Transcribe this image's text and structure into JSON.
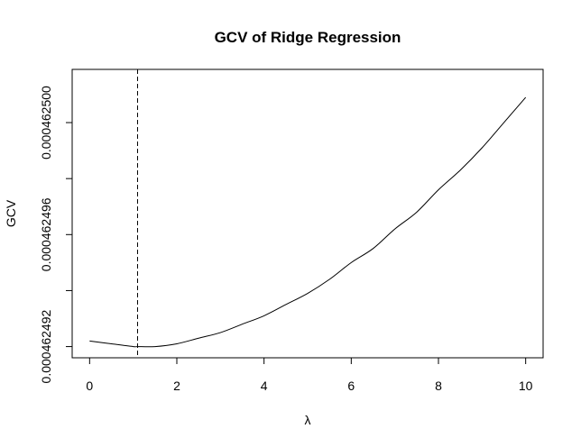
{
  "chart_data": {
    "type": "line",
    "title": "GCV of Ridge Regression",
    "xlabel": "λ",
    "ylabel": "GCV",
    "xlim": [
      -0.4,
      10.4
    ],
    "ylim": [
      0.0004624916,
      0.0004625019
    ],
    "xticks": [
      0,
      2,
      4,
      6,
      8,
      10
    ],
    "xtick_labels": [
      "0",
      "2",
      "4",
      "6",
      "8",
      "10"
    ],
    "yticks": [
      0.000462492,
      0.000462494,
      0.000462496,
      0.000462498,
      0.0004625
    ],
    "ytick_labels": [
      "0.000462492",
      "",
      "0.000462496",
      "",
      "0.000462500"
    ],
    "grid": false,
    "series": [
      {
        "x": [
          0,
          0.5,
          1.0,
          1.1,
          1.5,
          2,
          2.5,
          3,
          3.5,
          4,
          4.5,
          5,
          5.5,
          6,
          6.5,
          7,
          7.5,
          8,
          8.5,
          9,
          9.5,
          10
        ],
        "y": [
          0.0004624922,
          0.0004624921,
          0.000462492,
          0.000462492,
          0.000462492,
          0.0004624921,
          0.0004624923,
          0.0004624925,
          0.0004624928,
          0.0004624931,
          0.0004624935,
          0.0004624939,
          0.0004624944,
          0.000462495,
          0.0004624955,
          0.0004624962,
          0.0004624968,
          0.0004624976,
          0.0004624983,
          0.0004624991,
          0.0004625,
          0.0004625009
        ],
        "color": "#000000",
        "style": "solid"
      }
    ],
    "vlines": [
      {
        "x": 1.1,
        "style": "dashed",
        "color": "#000000"
      }
    ]
  }
}
